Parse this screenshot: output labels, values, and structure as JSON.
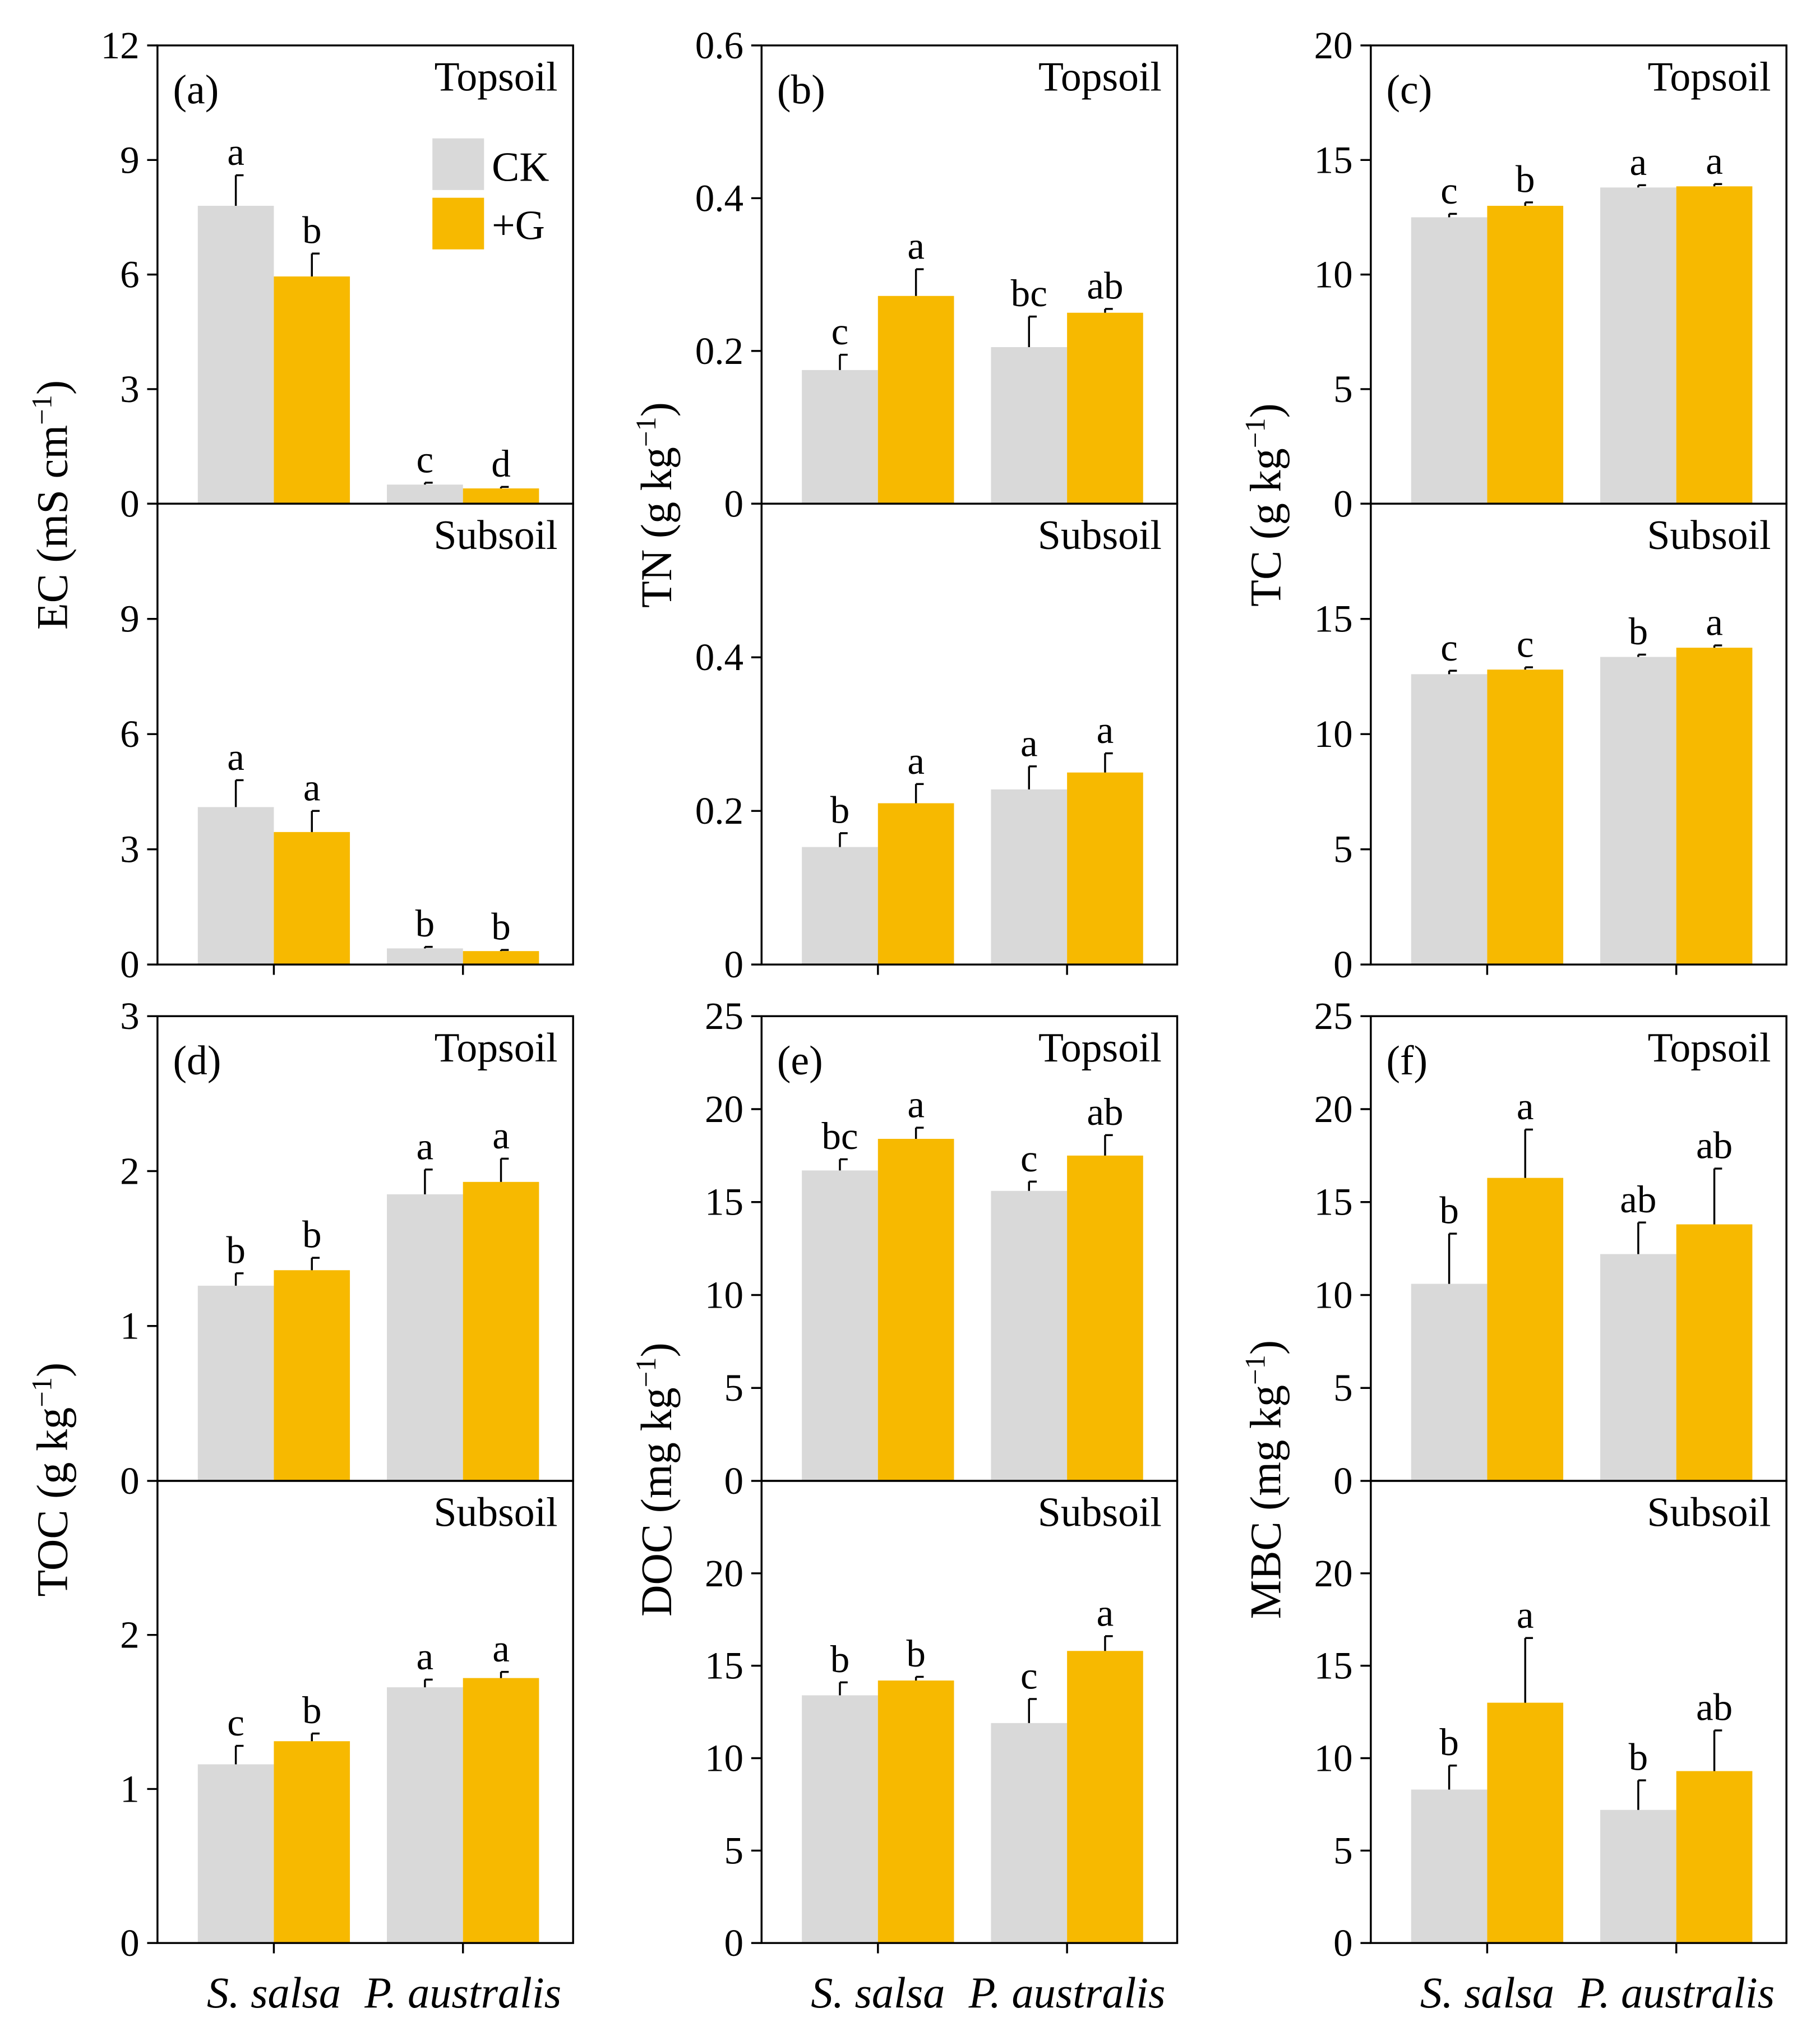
{
  "colors": {
    "CK": "#d9d9d9",
    "G": "#f7b900"
  },
  "legend": {
    "ck_label": "CK",
    "g_label": "+G"
  },
  "layer_labels": {
    "top": "Topsoil",
    "sub": "Subsoil"
  },
  "x_categories": [
    "S. salsa",
    "P. australis"
  ],
  "chart_data": [
    {
      "type": "bar",
      "panel": "(a)",
      "ylabel": [
        "EC (mS cm",
        "−1",
        ")"
      ],
      "ylim": [
        0,
        12
      ],
      "ticks_top": [
        0,
        3,
        6,
        9,
        12
      ],
      "ticks_sub": [
        0,
        3,
        6,
        9
      ],
      "top": {
        "CK": [
          7.8,
          0.5
        ],
        "G": [
          5.95,
          0.4
        ],
        "CK_err": [
          0.8,
          0.05
        ],
        "G_err": [
          0.6,
          0.04
        ],
        "letters": [
          "a",
          "b",
          "c",
          "d"
        ]
      },
      "sub": {
        "CK": [
          4.1,
          0.42
        ],
        "G": [
          3.45,
          0.35
        ],
        "CK_err": [
          0.7,
          0.04
        ],
        "G_err": [
          0.55,
          0.03
        ],
        "letters": [
          "a",
          "a",
          "b",
          "b"
        ]
      }
    },
    {
      "type": "bar",
      "panel": "(b)",
      "ylabel": [
        "TN (g kg",
        "−1",
        ")"
      ],
      "ylim": [
        0,
        0.6
      ],
      "ticks_top": [
        0,
        0.2,
        0.4,
        0.6
      ],
      "ticks_sub": [
        0,
        0.2,
        0.4
      ],
      "top": {
        "CK": [
          0.175,
          0.205
        ],
        "G": [
          0.272,
          0.25
        ],
        "CK_err": [
          0.02,
          0.04
        ],
        "G_err": [
          0.035,
          0.005
        ],
        "letters": [
          "c",
          "a",
          "bc",
          "ab"
        ]
      },
      "sub": {
        "CK": [
          0.153,
          0.228
        ],
        "G": [
          0.21,
          0.25
        ],
        "CK_err": [
          0.018,
          0.03
        ],
        "G_err": [
          0.025,
          0.025
        ],
        "letters": [
          "b",
          "a",
          "a",
          "a"
        ]
      }
    },
    {
      "type": "bar",
      "panel": "(c)",
      "ylabel": [
        "TC (g kg",
        "−1",
        ")"
      ],
      "ylim": [
        0,
        20
      ],
      "ticks_top": [
        0,
        5,
        10,
        15,
        20
      ],
      "ticks_sub": [
        0,
        5,
        10,
        15
      ],
      "top": {
        "CK": [
          12.5,
          13.8
        ],
        "G": [
          13.0,
          13.85
        ],
        "CK_err": [
          0.15,
          0.1
        ],
        "G_err": [
          0.15,
          0.1
        ],
        "letters": [
          "c",
          "b",
          "a",
          "a"
        ]
      },
      "sub": {
        "CK": [
          12.6,
          13.35
        ],
        "G": [
          12.8,
          13.75
        ],
        "CK_err": [
          0.15,
          0.1
        ],
        "G_err": [
          0.1,
          0.1
        ],
        "letters": [
          "c",
          "c",
          "b",
          "a"
        ]
      }
    },
    {
      "type": "bar",
      "panel": "(d)",
      "ylabel": [
        "TOC (g kg",
        "−1",
        ")"
      ],
      "ylim": [
        0,
        3
      ],
      "ticks_top": [
        0,
        1,
        2,
        3
      ],
      "ticks_sub": [
        0,
        1,
        2
      ],
      "top": {
        "CK": [
          1.26,
          1.85
        ],
        "G": [
          1.36,
          1.93
        ],
        "CK_err": [
          0.08,
          0.16
        ],
        "G_err": [
          0.08,
          0.15
        ],
        "letters": [
          "b",
          "b",
          "a",
          "a"
        ]
      },
      "sub": {
        "CK": [
          1.16,
          1.66
        ],
        "G": [
          1.31,
          1.72
        ],
        "CK_err": [
          0.12,
          0.05
        ],
        "G_err": [
          0.05,
          0.04
        ],
        "letters": [
          "c",
          "b",
          "a",
          "a"
        ]
      }
    },
    {
      "type": "bar",
      "panel": "(e)",
      "ylabel": [
        "DOC (mg kg",
        "−1",
        ")"
      ],
      "ylim": [
        0,
        25
      ],
      "ticks_top": [
        0,
        5,
        10,
        15,
        20,
        25
      ],
      "ticks_sub": [
        0,
        5,
        10,
        15,
        20
      ],
      "top": {
        "CK": [
          16.7,
          15.6
        ],
        "G": [
          18.4,
          17.5
        ],
        "CK_err": [
          0.6,
          0.5
        ],
        "G_err": [
          0.6,
          1.1
        ],
        "letters": [
          "bc",
          "a",
          "c",
          "ab"
        ]
      },
      "sub": {
        "CK": [
          13.4,
          11.9
        ],
        "G": [
          14.2,
          15.8
        ],
        "CK_err": [
          0.7,
          1.3
        ],
        "G_err": [
          0.2,
          0.8
        ],
        "letters": [
          "b",
          "b",
          "c",
          "a"
        ]
      }
    },
    {
      "type": "bar",
      "panel": "(f)",
      "ylabel": [
        "MBC (mg kg",
        "−1",
        ")"
      ],
      "ylim": [
        0,
        25
      ],
      "ticks_top": [
        0,
        5,
        10,
        15,
        20,
        25
      ],
      "ticks_sub": [
        0,
        5,
        10,
        15,
        20
      ],
      "top": {
        "CK": [
          10.6,
          12.2
        ],
        "G": [
          16.3,
          13.8
        ],
        "CK_err": [
          2.7,
          1.7
        ],
        "G_err": [
          2.6,
          3.0
        ],
        "letters": [
          "b",
          "a",
          "ab",
          "ab"
        ]
      },
      "sub": {
        "CK": [
          8.3,
          7.2
        ],
        "G": [
          13.0,
          9.3
        ],
        "CK_err": [
          1.3,
          1.6
        ],
        "G_err": [
          3.5,
          2.2
        ],
        "letters": [
          "b",
          "a",
          "b",
          "ab"
        ]
      }
    }
  ]
}
